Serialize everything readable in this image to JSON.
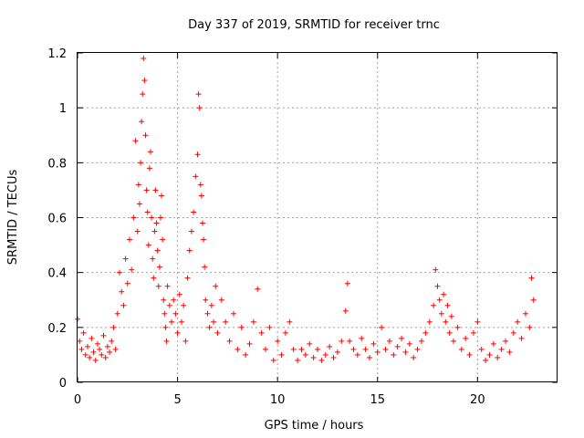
{
  "chart_data": {
    "type": "scatter",
    "title": "Day 337 of 2019, SRMTID for receiver trnc",
    "xlabel": "GPS time / hours",
    "ylabel": "SRMTID / TECUs",
    "xlim": [
      0,
      24
    ],
    "ylim": [
      0,
      1.2
    ],
    "xticks": [
      0,
      5,
      10,
      15,
      20
    ],
    "xtick_labels": [
      "0",
      "5",
      "10",
      "15",
      "20"
    ],
    "yticks": [
      0,
      0.2,
      0.4,
      0.6,
      0.8,
      1,
      1.2
    ],
    "ytick_labels": [
      "0",
      "0.2",
      "0.4",
      "0.6",
      "0.8",
      "1",
      "1.2"
    ],
    "grid": true,
    "marker": "+",
    "marker_color": "#ff0000",
    "series": [
      {
        "name": "SRMTID",
        "x": [
          0.0,
          0.1,
          0.2,
          0.3,
          0.4,
          0.5,
          0.6,
          0.7,
          0.8,
          0.9,
          1.0,
          1.1,
          1.2,
          1.3,
          1.4,
          1.5,
          1.6,
          1.7,
          1.8,
          1.9,
          2.0,
          2.1,
          2.2,
          2.3,
          2.4,
          2.5,
          2.6,
          2.7,
          2.8,
          2.9,
          3.0,
          3.05,
          3.1,
          3.15,
          3.2,
          3.25,
          3.3,
          3.35,
          3.4,
          3.45,
          3.5,
          3.55,
          3.6,
          3.65,
          3.7,
          3.75,
          3.8,
          3.85,
          3.9,
          3.95,
          4.0,
          4.05,
          4.1,
          4.15,
          4.2,
          4.25,
          4.3,
          4.35,
          4.4,
          4.45,
          4.5,
          4.6,
          4.7,
          4.8,
          4.9,
          5.0,
          5.1,
          5.2,
          5.3,
          5.4,
          5.5,
          5.6,
          5.7,
          5.8,
          5.9,
          6.0,
          6.05,
          6.1,
          6.15,
          6.2,
          6.25,
          6.3,
          6.35,
          6.4,
          6.5,
          6.6,
          6.7,
          6.8,
          6.9,
          7.0,
          7.2,
          7.4,
          7.6,
          7.8,
          8.0,
          8.2,
          8.4,
          8.6,
          8.8,
          9.0,
          9.2,
          9.4,
          9.6,
          9.8,
          10.0,
          10.2,
          10.4,
          10.6,
          10.8,
          11.0,
          11.2,
          11.4,
          11.6,
          11.8,
          12.0,
          12.2,
          12.4,
          12.6,
          12.8,
          13.0,
          13.2,
          13.4,
          13.5,
          13.6,
          13.8,
          14.0,
          14.2,
          14.4,
          14.6,
          14.8,
          15.0,
          15.2,
          15.4,
          15.6,
          15.8,
          16.0,
          16.2,
          16.4,
          16.6,
          16.8,
          17.0,
          17.2,
          17.4,
          17.6,
          17.8,
          17.9,
          18.0,
          18.1,
          18.2,
          18.3,
          18.4,
          18.5,
          18.6,
          18.7,
          18.8,
          19.0,
          19.2,
          19.4,
          19.6,
          19.8,
          20.0,
          20.2,
          20.4,
          20.6,
          20.8,
          21.0,
          21.2,
          21.4,
          21.6,
          21.8,
          22.0,
          22.2,
          22.4,
          22.6,
          22.7,
          22.8
        ],
        "y": [
          0.23,
          0.15,
          0.12,
          0.18,
          0.1,
          0.13,
          0.09,
          0.16,
          0.11,
          0.08,
          0.14,
          0.12,
          0.1,
          0.17,
          0.09,
          0.13,
          0.11,
          0.15,
          0.2,
          0.12,
          0.25,
          0.4,
          0.33,
          0.28,
          0.45,
          0.36,
          0.52,
          0.41,
          0.6,
          0.88,
          0.55,
          0.72,
          0.65,
          0.8,
          0.95,
          1.05,
          1.18,
          1.1,
          0.9,
          0.7,
          0.62,
          0.5,
          0.78,
          0.84,
          0.6,
          0.45,
          0.38,
          0.55,
          0.7,
          0.58,
          0.48,
          0.35,
          0.42,
          0.6,
          0.68,
          0.52,
          0.3,
          0.25,
          0.2,
          0.15,
          0.35,
          0.28,
          0.22,
          0.3,
          0.25,
          0.18,
          0.32,
          0.22,
          0.28,
          0.15,
          0.38,
          0.48,
          0.55,
          0.62,
          0.75,
          0.83,
          1.05,
          1.0,
          0.72,
          0.68,
          0.58,
          0.52,
          0.42,
          0.3,
          0.25,
          0.2,
          0.28,
          0.22,
          0.35,
          0.18,
          0.3,
          0.22,
          0.15,
          0.25,
          0.12,
          0.2,
          0.1,
          0.14,
          0.22,
          0.34,
          0.18,
          0.12,
          0.2,
          0.08,
          0.15,
          0.1,
          0.18,
          0.22,
          0.12,
          0.08,
          0.12,
          0.1,
          0.14,
          0.09,
          0.12,
          0.08,
          0.1,
          0.13,
          0.09,
          0.11,
          0.15,
          0.26,
          0.36,
          0.15,
          0.12,
          0.1,
          0.16,
          0.12,
          0.09,
          0.14,
          0.11,
          0.2,
          0.12,
          0.15,
          0.1,
          0.13,
          0.16,
          0.11,
          0.14,
          0.09,
          0.12,
          0.15,
          0.18,
          0.22,
          0.28,
          0.41,
          0.35,
          0.3,
          0.25,
          0.32,
          0.22,
          0.28,
          0.18,
          0.24,
          0.15,
          0.2,
          0.12,
          0.16,
          0.1,
          0.18,
          0.22,
          0.12,
          0.08,
          0.1,
          0.14,
          0.09,
          0.12,
          0.15,
          0.11,
          0.18,
          0.22,
          0.16,
          0.25,
          0.2,
          0.38,
          0.3
        ]
      }
    ]
  }
}
